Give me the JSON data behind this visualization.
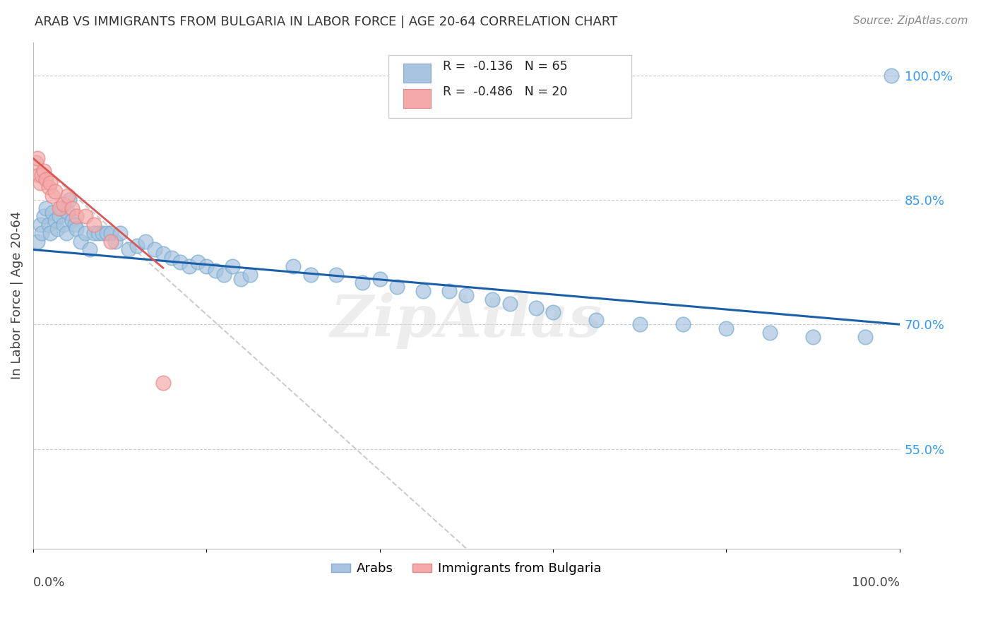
{
  "title": "ARAB VS IMMIGRANTS FROM BULGARIA IN LABOR FORCE | AGE 20-64 CORRELATION CHART",
  "source": "Source: ZipAtlas.com",
  "ylabel": "In Labor Force | Age 20-64",
  "right_ytick_vals": [
    0.55,
    0.7,
    0.85,
    1.0
  ],
  "right_ytick_labels": [
    "55.0%",
    "70.0%",
    "85.0%",
    "100.0%"
  ],
  "legend_label1": "Arabs",
  "legend_label2": "Immigrants from Bulgaria",
  "blue_color": "#A8C4E0",
  "pink_color": "#F4AAAA",
  "trendline_blue": "#1B5FA8",
  "trendline_pink_dashed": "#CCCCCC",
  "watermark": "ZipAtlas",
  "xlim": [
    0.0,
    1.0
  ],
  "ylim": [
    0.43,
    1.04
  ],
  "arab_x": [
    0.005,
    0.008,
    0.01,
    0.012,
    0.015,
    0.018,
    0.02,
    0.022,
    0.025,
    0.028,
    0.03,
    0.032,
    0.035,
    0.038,
    0.04,
    0.042,
    0.045,
    0.048,
    0.05,
    0.055,
    0.06,
    0.065,
    0.07,
    0.075,
    0.08,
    0.085,
    0.09,
    0.095,
    0.1,
    0.11,
    0.12,
    0.13,
    0.14,
    0.15,
    0.16,
    0.17,
    0.18,
    0.19,
    0.2,
    0.21,
    0.22,
    0.23,
    0.24,
    0.25,
    0.3,
    0.32,
    0.35,
    0.38,
    0.4,
    0.42,
    0.45,
    0.48,
    0.5,
    0.53,
    0.55,
    0.58,
    0.6,
    0.65,
    0.7,
    0.75,
    0.8,
    0.85,
    0.9,
    0.96,
    0.99
  ],
  "arab_y": [
    0.8,
    0.82,
    0.81,
    0.83,
    0.84,
    0.82,
    0.81,
    0.835,
    0.825,
    0.815,
    0.83,
    0.84,
    0.82,
    0.81,
    0.835,
    0.85,
    0.825,
    0.82,
    0.815,
    0.8,
    0.81,
    0.79,
    0.81,
    0.81,
    0.81,
    0.81,
    0.81,
    0.8,
    0.81,
    0.79,
    0.795,
    0.8,
    0.79,
    0.785,
    0.78,
    0.775,
    0.77,
    0.775,
    0.77,
    0.765,
    0.76,
    0.77,
    0.755,
    0.76,
    0.77,
    0.76,
    0.76,
    0.75,
    0.755,
    0.745,
    0.74,
    0.74,
    0.735,
    0.73,
    0.725,
    0.72,
    0.715,
    0.705,
    0.7,
    0.7,
    0.695,
    0.69,
    0.685,
    0.685,
    1.0
  ],
  "bulgaria_x": [
    0.003,
    0.005,
    0.007,
    0.008,
    0.01,
    0.012,
    0.015,
    0.018,
    0.02,
    0.022,
    0.025,
    0.03,
    0.035,
    0.04,
    0.045,
    0.05,
    0.06,
    0.07,
    0.09,
    0.15
  ],
  "bulgaria_y": [
    0.895,
    0.9,
    0.88,
    0.87,
    0.88,
    0.885,
    0.875,
    0.865,
    0.87,
    0.855,
    0.86,
    0.84,
    0.845,
    0.855,
    0.84,
    0.83,
    0.83,
    0.82,
    0.8,
    0.63
  ],
  "blue_trend_x0": 0.0,
  "blue_trend_y0": 0.79,
  "blue_trend_x1": 1.0,
  "blue_trend_y1": 0.7,
  "pink_trend_x0": 0.0,
  "pink_trend_y0": 0.9,
  "pink_trend_x1": 0.5,
  "pink_trend_y1": 0.43
}
